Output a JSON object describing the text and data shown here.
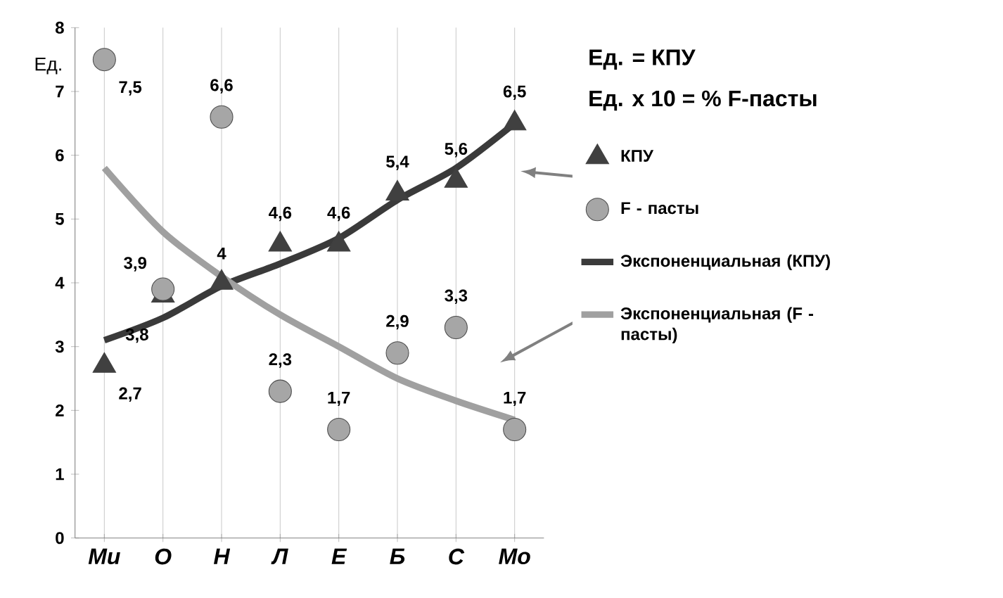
{
  "chart_data": {
    "type": "line",
    "ylabel": "Ед.",
    "annotations": [
      "Ед. = КПУ",
      "Ед. x 10 = % F-пасты"
    ],
    "categories": [
      "Ми",
      "О",
      "Н",
      "Л",
      "Е",
      "Б",
      "С",
      "Мо"
    ],
    "ylim": [
      0,
      8
    ],
    "yticks": [
      0,
      1,
      2,
      3,
      4,
      5,
      6,
      7,
      8
    ],
    "grid": "x",
    "legend": "right",
    "line_style": "solid",
    "series": [
      {
        "name": "КПУ",
        "type": "scatter",
        "marker": "triangle",
        "color": "#404040",
        "values": [
          2.7,
          3.8,
          4,
          4.6,
          4.6,
          5.4,
          5.6,
          6.5
        ],
        "value_labels": [
          "2,7",
          "3,8",
          "4",
          "4,6",
          "4,6",
          "5,4",
          "5,6",
          "6,5"
        ]
      },
      {
        "name": "F - пасты",
        "type": "scatter",
        "marker": "circle",
        "color": "#a6a6a6",
        "values": [
          7.5,
          3.9,
          6.6,
          2.3,
          1.7,
          2.9,
          3.3,
          1.7
        ],
        "value_labels": [
          "7,5",
          "3,9",
          "6,6",
          "2,3",
          "1,7",
          "2,9",
          "3,3",
          "1,7"
        ]
      },
      {
        "name": "Экспоненциальная (КПУ)",
        "type": "line",
        "marker": "none",
        "color": "#3a3a3a",
        "values": [
          3.1,
          3.45,
          3.95,
          4.3,
          4.7,
          5.3,
          5.8,
          6.5
        ]
      },
      {
        "name": "Экспоненциальная (F - пасты)",
        "type": "line",
        "marker": "none",
        "color": "#a0a0a0",
        "values": [
          5.8,
          4.8,
          4.1,
          3.5,
          3.0,
          2.5,
          2.15,
          1.85
        ]
      }
    ]
  }
}
